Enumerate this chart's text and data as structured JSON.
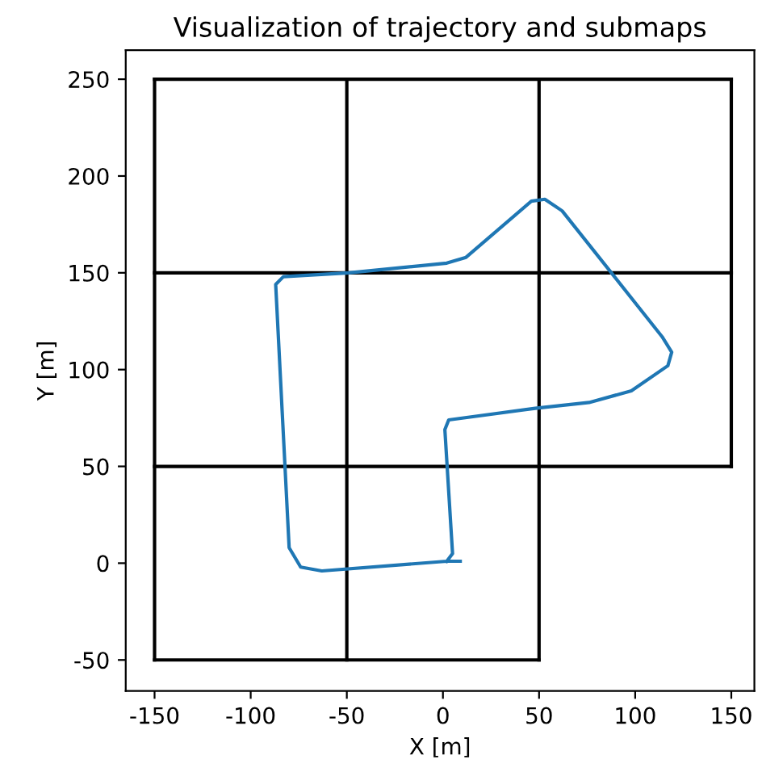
{
  "chart_data": {
    "type": "line",
    "title": "Visualization of trajectory and submaps",
    "xlabel": "X [m]",
    "ylabel": "Y [m]",
    "xlim": [
      -165,
      162
    ],
    "ylim": [
      -66,
      265
    ],
    "xticks": [
      -150,
      -100,
      -50,
      0,
      50,
      100,
      150
    ],
    "yticks": [
      -50,
      0,
      50,
      100,
      150,
      200,
      250
    ],
    "grid": false,
    "legend": false,
    "series": [
      {
        "color": "#000000",
        "x": [
          -150,
          150
        ],
        "values": [
          250,
          250
        ]
      },
      {
        "color": "#000000",
        "x": [
          -150,
          150
        ],
        "values": [
          150,
          150
        ]
      },
      {
        "color": "#000000",
        "x": [
          -150,
          150
        ],
        "values": [
          50,
          50
        ]
      },
      {
        "color": "#000000",
        "x": [
          -150,
          50
        ],
        "values": [
          -50,
          -50
        ]
      },
      {
        "color": "#000000",
        "x": [
          -150,
          -150
        ],
        "values": [
          -50,
          250
        ]
      },
      {
        "color": "#000000",
        "x": [
          -50,
          -50
        ],
        "values": [
          -50,
          250
        ]
      },
      {
        "color": "#000000",
        "x": [
          50,
          50
        ],
        "values": [
          -50,
          250
        ]
      },
      {
        "color": "#000000",
        "x": [
          150,
          150
        ],
        "values": [
          50,
          250
        ]
      },
      {
        "color": "#1f77b4",
        "x": [
          2,
          5,
          1,
          3,
          48,
          76,
          98,
          117,
          119,
          114,
          62,
          53,
          46,
          12,
          2,
          -49,
          -83,
          -87,
          -80,
          -74,
          -63,
          2,
          9
        ],
        "values": [
          1,
          5,
          69,
          74,
          80,
          83,
          89,
          102,
          109,
          117,
          182,
          188,
          187,
          158,
          155,
          150,
          148,
          144,
          8,
          -2,
          -4,
          1,
          1
        ]
      }
    ]
  }
}
